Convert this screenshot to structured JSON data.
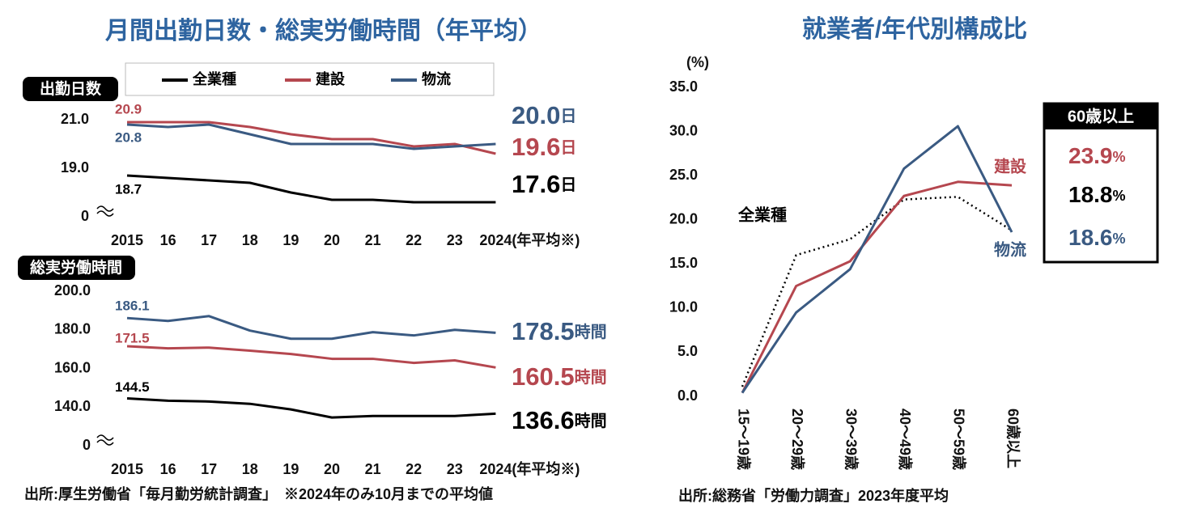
{
  "chart_data": [
    {
      "type": "line",
      "title": "月間出勤日数・総実労働時間（年平均）",
      "panel_label": "出勤日数",
      "categories": [
        "2015",
        "16",
        "17",
        "18",
        "19",
        "20",
        "21",
        "22",
        "23",
        "2024(年平均※)"
      ],
      "series": [
        {
          "name": "全業種",
          "color": "#000000",
          "values": [
            18.7,
            18.6,
            18.5,
            18.4,
            18.0,
            17.7,
            17.7,
            17.6,
            17.6,
            17.6
          ],
          "value_labels": [
            "18.7",
            null,
            null,
            null,
            null,
            null,
            null,
            null,
            null,
            "17.6"
          ]
        },
        {
          "name": "建設",
          "color": "#b5474f",
          "values": [
            20.9,
            20.9,
            20.9,
            20.7,
            20.4,
            20.2,
            20.2,
            19.9,
            20.0,
            19.6
          ],
          "value_labels": [
            "20.9",
            null,
            null,
            null,
            null,
            null,
            null,
            null,
            null,
            "19.6"
          ]
        },
        {
          "name": "物流",
          "color": "#3a5a82",
          "values": [
            20.8,
            20.7,
            20.8,
            20.4,
            20.0,
            20.0,
            20.0,
            19.8,
            19.9,
            20.0
          ],
          "value_labels": [
            "20.8",
            null,
            null,
            null,
            null,
            null,
            null,
            null,
            null,
            "20.0"
          ]
        }
      ],
      "ylim": [
        0,
        21
      ],
      "ybreak": [
        0,
        17
      ],
      "yticks": [
        0,
        {
          "value": 19,
          "label": "19.0"
        },
        {
          "value": 21,
          "label": "21.0"
        }
      ],
      "end_unit": "日",
      "legend": "top"
    },
    {
      "type": "line",
      "panel_label": "総実労働時間",
      "categories": [
        "2015",
        "16",
        "17",
        "18",
        "19",
        "20",
        "21",
        "22",
        "23",
        "2024(年平均※)"
      ],
      "series": [
        {
          "color": "#000000",
          "values": [
            144.5,
            143.3,
            142.9,
            141.7,
            138.8,
            134.6,
            135.4,
            135.4,
            135.4,
            136.6
          ],
          "value_labels": [
            "144.5",
            null,
            null,
            null,
            null,
            null,
            null,
            null,
            null,
            "136.6"
          ]
        },
        {
          "color": "#b5474f",
          "values": [
            171.5,
            170.4,
            170.8,
            169.2,
            167.5,
            165.0,
            165.0,
            162.9,
            164.2,
            160.5
          ],
          "value_labels": [
            "171.5",
            null,
            null,
            null,
            null,
            null,
            null,
            null,
            null,
            "160.5"
          ]
        },
        {
          "color": "#3a5a82",
          "values": [
            186.1,
            184.6,
            187.1,
            179.6,
            175.4,
            175.4,
            178.8,
            177.1,
            180.0,
            178.5
          ],
          "value_labels": [
            "186.1",
            null,
            null,
            null,
            null,
            null,
            null,
            null,
            null,
            "178.5"
          ]
        }
      ],
      "ylim": [
        0,
        200
      ],
      "ybreak": [
        0,
        120
      ],
      "yticks": [
        0,
        {
          "value": 140,
          "label": "140.0"
        },
        {
          "value": 160,
          "label": "160.0"
        },
        {
          "value": 180,
          "label": "180.0"
        },
        {
          "value": 200,
          "label": "200.0"
        }
      ],
      "end_unit": "時間",
      "source": "出所:厚生労働省「毎月勤労統計調査」　※2024年のみ10月までの平均値"
    },
    {
      "type": "line",
      "title": "就業者/年代別構成比",
      "y_label": "(%)",
      "categories": [
        "15～19歳",
        "20～29歳",
        "30～39歳",
        "40～49歳",
        "50～59歳",
        "60歳以上"
      ],
      "series": [
        {
          "name": "全業種",
          "color": "#000000",
          "dash": "dotted",
          "values": [
            1.1,
            16.0,
            17.8,
            22.3,
            22.6,
            18.8
          ],
          "value_labels": [
            null,
            null,
            null,
            null,
            null,
            "18.8"
          ]
        },
        {
          "name": "建設",
          "color": "#b5474f",
          "values": [
            0.4,
            12.5,
            15.3,
            22.7,
            24.3,
            23.9
          ],
          "value_labels": [
            null,
            null,
            null,
            null,
            null,
            "23.9"
          ]
        },
        {
          "name": "物流",
          "color": "#3a5a82",
          "values": [
            0.4,
            9.5,
            14.4,
            25.8,
            30.6,
            18.6
          ],
          "value_labels": [
            null,
            null,
            null,
            null,
            null,
            "18.6"
          ]
        }
      ],
      "ylim": [
        0,
        35
      ],
      "yticks": [
        {
          "value": 0,
          "label": "0.0"
        },
        {
          "value": 5,
          "label": "5.0"
        },
        {
          "value": 10,
          "label": "10.0"
        },
        {
          "value": 15,
          "label": "15.0"
        },
        {
          "value": 20,
          "label": "20.0"
        },
        {
          "value": 25,
          "label": "25.0"
        },
        {
          "value": 30,
          "label": "30.0"
        },
        {
          "value": 35,
          "label": "35.0"
        }
      ],
      "value_unit": "%",
      "source": "出所:総務省「労働力調査」2023年度平均"
    }
  ]
}
